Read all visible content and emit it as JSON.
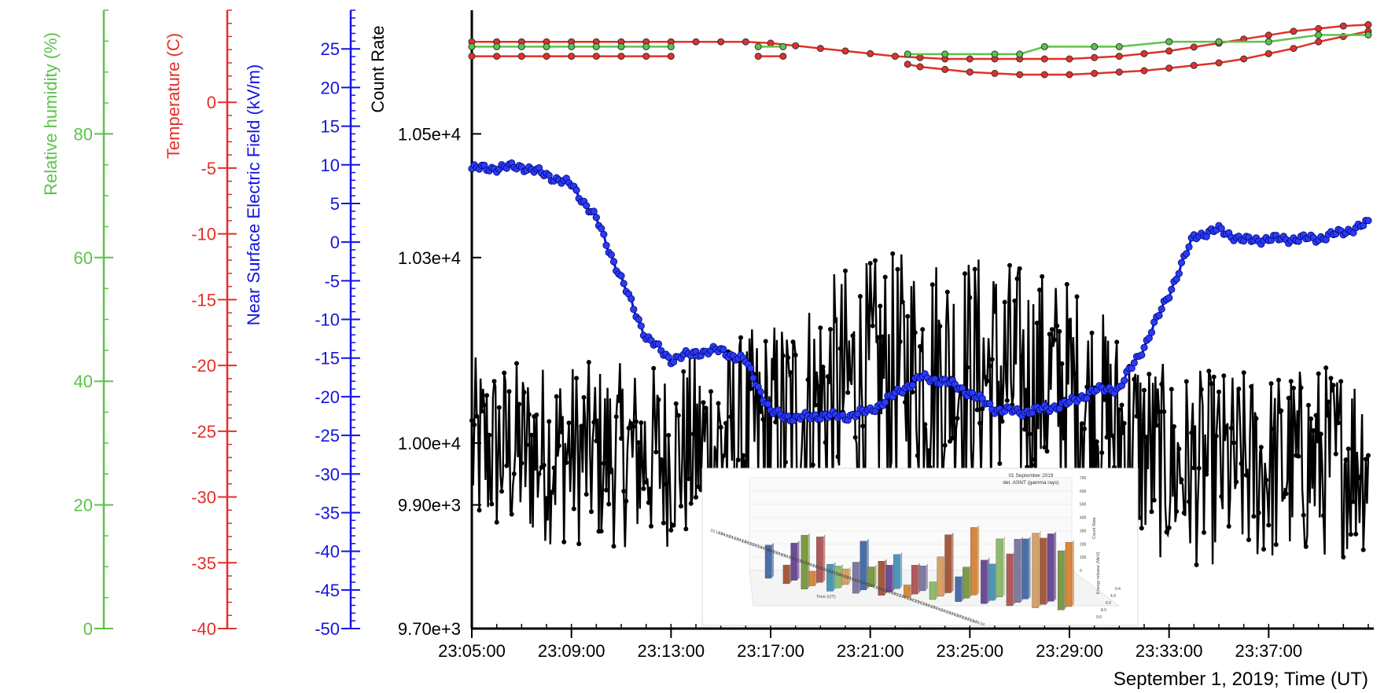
{
  "chart_data": {
    "type": "line",
    "title": "",
    "x_axis": {
      "label": "September 1, 2019; Time (UT)",
      "range_minutes": [
        0,
        36
      ],
      "tick_labels": [
        "23:05:00",
        "23:09:00",
        "23:13:00",
        "23:17:00",
        "23:21:00",
        "23:25:00",
        "23:29:00",
        "23:33:00",
        "23:37:00"
      ],
      "tick_minutes": [
        0,
        4,
        8,
        12,
        16,
        20,
        24,
        28,
        32
      ]
    },
    "axes": [
      {
        "id": "rh",
        "label": "Relative humidity (%)",
        "color": "#5cc34a",
        "ylim": [
          0,
          100
        ],
        "tick_values": [
          0,
          20,
          40,
          60,
          80
        ],
        "tick_labels": [
          "0",
          "20",
          "40",
          "60",
          "80"
        ]
      },
      {
        "id": "temp",
        "label": "Temperature (C)",
        "color": "#e2302a",
        "ylim": [
          -40,
          7
        ],
        "tick_values": [
          0,
          -5,
          -10,
          -15,
          -20,
          -25,
          -30,
          -35,
          -40
        ],
        "tick_labels": [
          "0",
          "-5",
          "-10",
          "-15",
          "-20",
          "-25",
          "-30",
          "-35",
          "-40"
        ]
      },
      {
        "id": "field",
        "label": "Near Surface Electric Field (kV/m)",
        "color": "#1515e0",
        "ylim": [
          -50,
          30
        ],
        "tick_values": [
          25,
          20,
          15,
          10,
          5,
          0,
          -5,
          -10,
          -15,
          -20,
          -25,
          -30,
          -35,
          -40,
          -45,
          -50
        ],
        "tick_labels": [
          "25",
          "20",
          "15",
          "10",
          "5",
          "0",
          "-5",
          "-10",
          "-15",
          "-20",
          "-25",
          "-30",
          "-35",
          "-40",
          "-45",
          "-50"
        ]
      },
      {
        "id": "count",
        "label": "Count Rate",
        "color": "#000000",
        "ylim": [
          9700,
          10700
        ],
        "tick_values": [
          10500,
          10300,
          10000,
          9900,
          9700
        ],
        "tick_labels": [
          "1.05e+4",
          "1.03e+4",
          "1.00e+4",
          "9.90e+3",
          "9.70e+3"
        ]
      }
    ],
    "series": [
      {
        "axis": "rh",
        "color": "#5cc34a",
        "segments": [
          {
            "x": [
              0,
              1,
              2,
              3,
              4,
              5,
              6,
              7,
              8
            ],
            "y": [
              94.1,
              94.1,
              94.1,
              94.1,
              94.1,
              94.1,
              94.1,
              94.1,
              94.1
            ]
          },
          {
            "x": [
              11.5,
              12.5
            ],
            "y": [
              94.1,
              94.1
            ]
          },
          {
            "x": [
              17.5,
              19,
              21,
              22,
              23,
              25,
              26,
              28,
              30,
              32,
              34,
              36
            ],
            "y": [
              92.9,
              92.9,
              92.9,
              92.9,
              94.1,
              94.1,
              94.1,
              94.9,
              94.9,
              94.9,
              96.0,
              96.0
            ]
          }
        ]
      },
      {
        "axis": "temp",
        "color": "#e2302a",
        "segments": [
          {
            "x": [
              0,
              1,
              2,
              3,
              4,
              5,
              6,
              7,
              8,
              9,
              10,
              11,
              12,
              13,
              14,
              15,
              16,
              17,
              18,
              19,
              20,
              21,
              22,
              23,
              24,
              25,
              26,
              27,
              28,
              29,
              30,
              31,
              32,
              33,
              34,
              35,
              36
            ],
            "y": [
              4.6,
              4.6,
              4.6,
              4.6,
              4.6,
              4.6,
              4.6,
              4.6,
              4.6,
              4.6,
              4.6,
              4.6,
              4.5,
              4.3,
              4.1,
              3.9,
              3.7,
              3.5,
              3.4,
              3.3,
              3.3,
              3.3,
              3.3,
              3.3,
              3.3,
              3.4,
              3.5,
              3.7,
              3.9,
              4.2,
              4.5,
              4.8,
              5.1,
              5.4,
              5.6,
              5.8,
              5.9
            ]
          },
          {
            "x": [
              0,
              1,
              2,
              3,
              4,
              5,
              6,
              7,
              8
            ],
            "y": [
              3.5,
              3.5,
              3.5,
              3.5,
              3.5,
              3.5,
              3.5,
              3.5,
              3.5
            ]
          },
          {
            "x": [
              11.5,
              12.5
            ],
            "y": [
              3.5,
              3.5
            ]
          },
          {
            "x": [
              17.5,
              18,
              19,
              20,
              21,
              22,
              23,
              24,
              25,
              26,
              27,
              28,
              29,
              30,
              31,
              32,
              33,
              34,
              35,
              36
            ],
            "y": [
              2.9,
              2.7,
              2.5,
              2.3,
              2.2,
              2.1,
              2.1,
              2.1,
              2.2,
              2.3,
              2.4,
              2.6,
              2.8,
              3.0,
              3.3,
              3.7,
              4.1,
              4.6,
              5.0,
              5.4
            ]
          }
        ]
      },
      {
        "axis": "field",
        "color": "#1515e0",
        "x": [
          0,
          1,
          2,
          3,
          4,
          5,
          6,
          7,
          8,
          9,
          10,
          11,
          12,
          13,
          14,
          15,
          16,
          17,
          18,
          19,
          20,
          21,
          22,
          23,
          24,
          25,
          26,
          27,
          28,
          29,
          30,
          31,
          32,
          33,
          34,
          35,
          36
        ],
        "y": [
          9.5,
          9.6,
          9.8,
          8.7,
          7.4,
          3.0,
          -4.8,
          -12.3,
          -15.2,
          -14.3,
          -14.0,
          -15.4,
          -22.0,
          -22.8,
          -22.4,
          -22.6,
          -21.8,
          -19.7,
          -17.5,
          -18.0,
          -19.5,
          -21.6,
          -22.0,
          -21.6,
          -20.8,
          -19.2,
          -18.9,
          -13.5,
          -6.7,
          0.8,
          1.6,
          0.2,
          0.4,
          0.4,
          0.5,
          1.3,
          2.4
        ]
      },
      {
        "axis": "count",
        "color": "#000000",
        "kind": "noisy",
        "center_x": [
          0,
          6,
          8,
          12,
          15,
          18,
          21,
          24,
          26,
          28,
          32,
          36
        ],
        "center_y": [
          9990,
          9980,
          9980,
          10020,
          10090,
          10120,
          10110,
          10090,
          10020,
          9960,
          9960,
          9980
        ],
        "spread_y": [
          150,
          150,
          150,
          180,
          200,
          200,
          200,
          180,
          170,
          160,
          160,
          160
        ]
      }
    ],
    "inset": {
      "kind": "3D bar chart",
      "title": "01 September 2019\ndet. ASNT (gamma rays)",
      "xlabel": "Time (UT)",
      "ylabel": "Energy release (MeV)",
      "zlabel": "Count Rate",
      "z_ticks": [
        "0",
        "100",
        "200",
        "300",
        "400",
        "500",
        "600",
        "700"
      ],
      "y_ticks": [
        "0.4",
        "4.0",
        "6.0",
        "8.0",
        "9.6"
      ],
      "time_labels": [
        "23:14:04",
        "23:14:24",
        "23:14:44",
        "23:15:04",
        "23:15:24",
        "23:15:44",
        "23:16:04",
        "23:16:24",
        "23:16:44",
        "23:17:04",
        "23:17:24",
        "23:17:44",
        "23:18:04",
        "23:18:24",
        "23:18:44",
        "23:19:04",
        "23:19:24",
        "23:19:44",
        "23:20:04",
        "23:20:24",
        "23:21:04",
        "23:21:24",
        "23:22:04",
        "23:22:24",
        "23:23:04",
        "23:23:24",
        "23:23:44",
        "23:24:04",
        "23:24:24",
        "23:24:44",
        "23:25:04",
        "23:25:24",
        "23:25:44",
        "23:26:04",
        "23:26:24"
      ],
      "bar_values": [
        320,
        180,
        520,
        360,
        140,
        260,
        440,
        210,
        300,
        150,
        470,
        330,
        190,
        260,
        120,
        330,
        280,
        170,
        240,
        380,
        240,
        560,
        300,
        420,
        650,
        350,
        500,
        560,
        610,
        720,
        580,
        640,
        570,
        650,
        620
      ],
      "bar_colors": [
        "#4a6fa8",
        "#a55a3e",
        "#7e9a45",
        "#6c4c96",
        "#d7873f",
        "#4a97b6",
        "#b25959",
        "#8fbb6a",
        "#7f7aa3",
        "#d9a164"
      ]
    },
    "legend": "none",
    "grid": false
  }
}
